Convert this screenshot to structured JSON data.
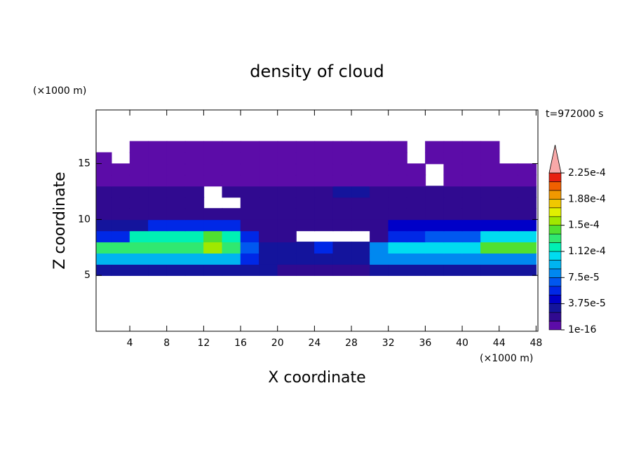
{
  "chart_data": {
    "type": "contour",
    "title": "density of cloud",
    "x_label": "X coordinate",
    "y_label": "Z coordinate",
    "x_unit": "(×1000 m)",
    "y_unit": "(×1000 m)",
    "annotation": "t=972000 s",
    "xlim": [
      0.35,
      48.2
    ],
    "ylim": [
      0,
      19.8
    ],
    "xticks": [
      4,
      8,
      12,
      16,
      20,
      24,
      28,
      32,
      36,
      40,
      44,
      48
    ],
    "yticks": [
      5,
      10,
      15
    ],
    "x": [
      1,
      3,
      5,
      7,
      9,
      11,
      13,
      15,
      17,
      19,
      21,
      23,
      25,
      27,
      29,
      31,
      33,
      35,
      37,
      39,
      41,
      43,
      45,
      47
    ],
    "y": [
      5.5,
      6.5,
      7.5,
      8.5,
      9.5,
      10.5,
      11.5,
      12.5,
      13.5,
      14.5,
      15.5,
      16.5
    ],
    "values": [
      [
        3e-05,
        3e-05,
        3e-05,
        3e-05,
        3e-05,
        3e-05,
        3e-05,
        3e-05,
        3e-05,
        3e-05,
        2e-05,
        2e-05,
        2e-05,
        2e-05,
        2e-05,
        3e-05,
        3e-05,
        3e-05,
        3e-05,
        3e-05,
        3e-05,
        3e-05,
        3e-05,
        3e-05
      ],
      [
        9e-05,
        9e-05,
        9e-05,
        9e-05,
        9e-05,
        9e-05,
        9e-05,
        9e-05,
        5e-05,
        3e-05,
        3e-05,
        3e-05,
        3e-05,
        3e-05,
        3e-05,
        8e-05,
        8e-05,
        8e-05,
        8e-05,
        8e-05,
        8e-05,
        8e-05,
        8e-05,
        8e-05
      ],
      [
        0.000135,
        0.000135,
        0.000135,
        0.000135,
        0.000135,
        0.000135,
        0.00016,
        0.000135,
        7e-05,
        3e-05,
        3e-05,
        3e-05,
        5e-05,
        3e-05,
        3e-05,
        8e-05,
        0.00011,
        0.00011,
        0.00011,
        0.00011,
        0.00011,
        0.000145,
        0.000145,
        0.000145
      ],
      [
        6e-05,
        6e-05,
        0.00012,
        0.00012,
        0.00012,
        0.00012,
        0.00014,
        0.00012,
        5e-05,
        1.8e-05,
        2e-05,
        null,
        null,
        null,
        null,
        2e-05,
        5e-05,
        5e-05,
        7e-05,
        7e-05,
        7e-05,
        0.0001,
        0.0001,
        0.0001
      ],
      [
        3e-05,
        3e-05,
        3e-05,
        5e-05,
        5e-05,
        5e-05,
        5e-05,
        5e-05,
        1.8e-05,
        1.8e-05,
        1.8e-05,
        1.8e-05,
        1.8e-05,
        1.8e-05,
        1.8e-05,
        1.8e-05,
        4e-05,
        4e-05,
        4e-05,
        4e-05,
        4e-05,
        4e-05,
        4e-05,
        4e-05
      ],
      [
        1.8e-05,
        1.8e-05,
        1.8e-05,
        1.8e-05,
        1.8e-05,
        1.8e-05,
        1.8e-05,
        1.8e-05,
        1.8e-05,
        1.8e-05,
        1.8e-05,
        1.8e-05,
        1.8e-05,
        1.8e-05,
        1.8e-05,
        1.8e-05,
        1.8e-05,
        1.8e-05,
        1.8e-05,
        1.8e-05,
        1.8e-05,
        1.8e-05,
        1.8e-05,
        1.8e-05
      ],
      [
        1.8e-05,
        1.8e-05,
        1.8e-05,
        1.8e-05,
        1.8e-05,
        1.8e-05,
        null,
        null,
        1.8e-05,
        1.8e-05,
        1.8e-05,
        1.8e-05,
        1.8e-05,
        1.8e-05,
        1.8e-05,
        1.8e-05,
        1.8e-05,
        1.8e-05,
        1.8e-05,
        1.8e-05,
        1.8e-05,
        1.8e-05,
        1.8e-05,
        1.8e-05
      ],
      [
        1.8e-05,
        1.8e-05,
        1.8e-05,
        1.8e-05,
        1.8e-05,
        1.8e-05,
        null,
        1.8e-05,
        1.8e-05,
        1.8e-05,
        1.8e-05,
        1.8e-05,
        1.8e-05,
        3e-05,
        3e-05,
        1.8e-05,
        1.8e-05,
        1.8e-05,
        1.8e-05,
        1.8e-05,
        1.8e-05,
        1.8e-05,
        1.8e-05,
        1.8e-05
      ],
      [
        6e-06,
        6e-06,
        6e-06,
        6e-06,
        6e-06,
        6e-06,
        6e-06,
        6e-06,
        6e-06,
        6e-06,
        6e-06,
        6e-06,
        6e-06,
        6e-06,
        6e-06,
        6e-06,
        6e-06,
        6e-06,
        null,
        6e-06,
        6e-06,
        6e-06,
        6e-06,
        6e-06
      ],
      [
        6e-06,
        6e-06,
        6e-06,
        6e-06,
        6e-06,
        6e-06,
        6e-06,
        6e-06,
        6e-06,
        6e-06,
        6e-06,
        6e-06,
        6e-06,
        6e-06,
        6e-06,
        6e-06,
        6e-06,
        6e-06,
        null,
        6e-06,
        6e-06,
        6e-06,
        6e-06,
        6e-06
      ],
      [
        6e-06,
        null,
        6e-06,
        6e-06,
        6e-06,
        6e-06,
        6e-06,
        6e-06,
        6e-06,
        6e-06,
        6e-06,
        6e-06,
        6e-06,
        6e-06,
        6e-06,
        6e-06,
        6e-06,
        null,
        6e-06,
        6e-06,
        6e-06,
        6e-06,
        null,
        null
      ],
      [
        null,
        null,
        6e-06,
        6e-06,
        6e-06,
        6e-06,
        6e-06,
        6e-06,
        6e-06,
        6e-06,
        6e-06,
        6e-06,
        6e-06,
        6e-06,
        6e-06,
        6e-06,
        6e-06,
        null,
        6e-06,
        6e-06,
        6e-06,
        6e-06,
        null,
        null
      ]
    ],
    "levels": [
      1e-16,
      1.25e-05,
      2.5e-05,
      3.75e-05,
      5e-05,
      6.25e-05,
      7.5e-05,
      8.75e-05,
      0.0001,
      0.0001125,
      0.000125,
      0.0001375,
      0.00015,
      0.0001625,
      0.000175,
      0.0001875,
      0.0002,
      0.0002125,
      0.000225
    ],
    "colors": [
      "#5c0ca8",
      "#300a90",
      "#14149c",
      "#0000c8",
      "#0028e6",
      "#0058f0",
      "#0088f0",
      "#00b4f0",
      "#00dcf0",
      "#00f0b4",
      "#30e870",
      "#50e030",
      "#a0e800",
      "#e0f000",
      "#f0c800",
      "#f09800",
      "#f06000",
      "#e82010"
    ],
    "extend_color": "#f8a8a8",
    "colorbar_ticks": [
      {
        "value": 1e-16,
        "label": "1e-16"
      },
      {
        "value": 3.75e-05,
        "label": "3.75e-5"
      },
      {
        "value": 7.5e-05,
        "label": "7.5e-5"
      },
      {
        "value": 0.0001125,
        "label": "1.12e-4"
      },
      {
        "value": 0.00015,
        "label": "1.5e-4"
      },
      {
        "value": 0.0001875,
        "label": "1.88e-4"
      },
      {
        "value": 0.000225,
        "label": "2.25e-4"
      }
    ]
  }
}
